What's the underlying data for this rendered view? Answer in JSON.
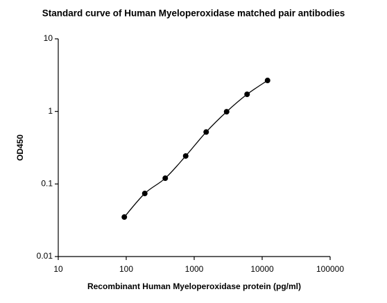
{
  "chart_data": {
    "type": "scatter",
    "title": "Standard curve of Human Myeloperoxidase matched pair antibodies",
    "x_label": "Recombinant Human Myeloperoxidase protein (pg/ml)",
    "y_label": "OD450",
    "x": [
      93.75,
      187.5,
      375,
      750,
      1500,
      3000,
      6000,
      12000
    ],
    "values": [
      0.035,
      0.074,
      0.12,
      0.243,
      0.52,
      0.99,
      1.72,
      2.67
    ],
    "color": "#000000",
    "x_log": true,
    "y_log": true,
    "fit_curve": true,
    "xlim": [
      10,
      100000
    ],
    "xticks": [
      10,
      100,
      1000,
      10000,
      100000
    ],
    "ylim": [
      0.01,
      10
    ],
    "yticks": [
      0.01,
      0.1,
      1,
      10
    ]
  }
}
